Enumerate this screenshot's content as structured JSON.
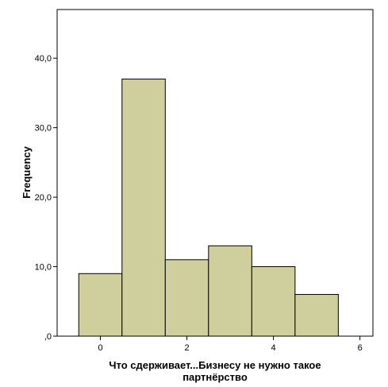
{
  "chart_data": {
    "type": "bar",
    "title": "",
    "xlabel_lines": [
      "Что сдерживает...Бизнесу не нужно такое",
      "партнёрство"
    ],
    "ylabel": "Frequency",
    "x": [
      0,
      1,
      2,
      3,
      4,
      5
    ],
    "values": [
      9,
      37,
      11,
      13,
      10,
      6
    ],
    "bin_width": 1,
    "xlim": [
      -1,
      6.3
    ],
    "ylim": [
      0,
      47
    ],
    "x_ticks": [
      0,
      2,
      4,
      6
    ],
    "x_tick_labels": [
      "0",
      "2",
      "4",
      "6"
    ],
    "y_ticks": [
      0,
      10,
      20,
      30,
      40
    ],
    "y_tick_labels": [
      ",0",
      "10,0",
      "20,0",
      "30,0",
      "40,0"
    ],
    "grid": false,
    "colors": {
      "bar_fill": "#cfcf9e",
      "bar_stroke": "#000000",
      "frame": "#000000",
      "background": "#ffffff"
    }
  }
}
